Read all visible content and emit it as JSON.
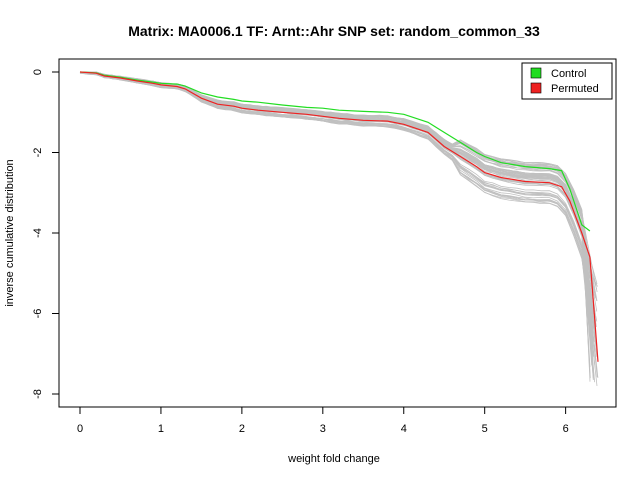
{
  "chart_data": {
    "type": "line",
    "title": "Matrix: MA0006.1 TF: Arnt::Ahr SNP set: random_common_33",
    "xlabel": "weight fold change",
    "ylabel": "inverse cumulative distribution",
    "xlim": [
      0,
      6.4
    ],
    "ylim": [
      -8,
      0
    ],
    "xticks": [
      "0",
      "1",
      "2",
      "3",
      "4",
      "5",
      "6"
    ],
    "yticks": [
      "0",
      "-2",
      "-4",
      "-6",
      "-8"
    ],
    "legend_position": "top-right",
    "legend": [
      {
        "name": "Control",
        "color": "#22dd22"
      },
      {
        "name": "Permuted",
        "color": "#ee2222"
      }
    ],
    "band_color": "#c0c0c0",
    "band_count": 60,
    "series": [
      {
        "name": "Control",
        "color": "#22dd22",
        "x": [
          0.0,
          0.2,
          0.3,
          0.5,
          0.7,
          0.9,
          1.0,
          1.2,
          1.3,
          1.5,
          1.7,
          1.9,
          2.0,
          2.2,
          2.5,
          2.8,
          3.0,
          3.2,
          3.5,
          3.8,
          4.0,
          4.3,
          4.5,
          4.7,
          4.9,
          5.0,
          5.2,
          5.5,
          5.8,
          5.95,
          6.05,
          6.2,
          6.3
        ],
        "y": [
          0.0,
          -0.02,
          -0.08,
          -0.13,
          -0.2,
          -0.25,
          -0.28,
          -0.3,
          -0.35,
          -0.52,
          -0.62,
          -0.68,
          -0.72,
          -0.75,
          -0.82,
          -0.88,
          -0.9,
          -0.95,
          -0.98,
          -1.0,
          -1.05,
          -1.25,
          -1.5,
          -1.75,
          -2.0,
          -2.1,
          -2.25,
          -2.35,
          -2.4,
          -2.45,
          -2.9,
          -3.8,
          -3.95
        ]
      },
      {
        "name": "Permuted",
        "color": "#ee2222",
        "x": [
          0.0,
          0.2,
          0.3,
          0.5,
          0.7,
          0.9,
          1.0,
          1.2,
          1.3,
          1.5,
          1.7,
          1.9,
          2.0,
          2.2,
          2.5,
          2.8,
          3.0,
          3.2,
          3.5,
          3.8,
          4.0,
          4.3,
          4.5,
          4.7,
          4.9,
          5.0,
          5.2,
          5.5,
          5.8,
          5.95,
          6.05,
          6.2,
          6.3,
          6.4
        ],
        "y": [
          0.0,
          -0.03,
          -0.1,
          -0.15,
          -0.22,
          -0.28,
          -0.32,
          -0.36,
          -0.42,
          -0.65,
          -0.8,
          -0.85,
          -0.9,
          -0.95,
          -1.0,
          -1.05,
          -1.1,
          -1.15,
          -1.2,
          -1.22,
          -1.3,
          -1.5,
          -1.85,
          -2.1,
          -2.35,
          -2.5,
          -2.62,
          -2.72,
          -2.75,
          -2.85,
          -3.2,
          -4.0,
          -4.6,
          -7.2
        ]
      }
    ]
  }
}
